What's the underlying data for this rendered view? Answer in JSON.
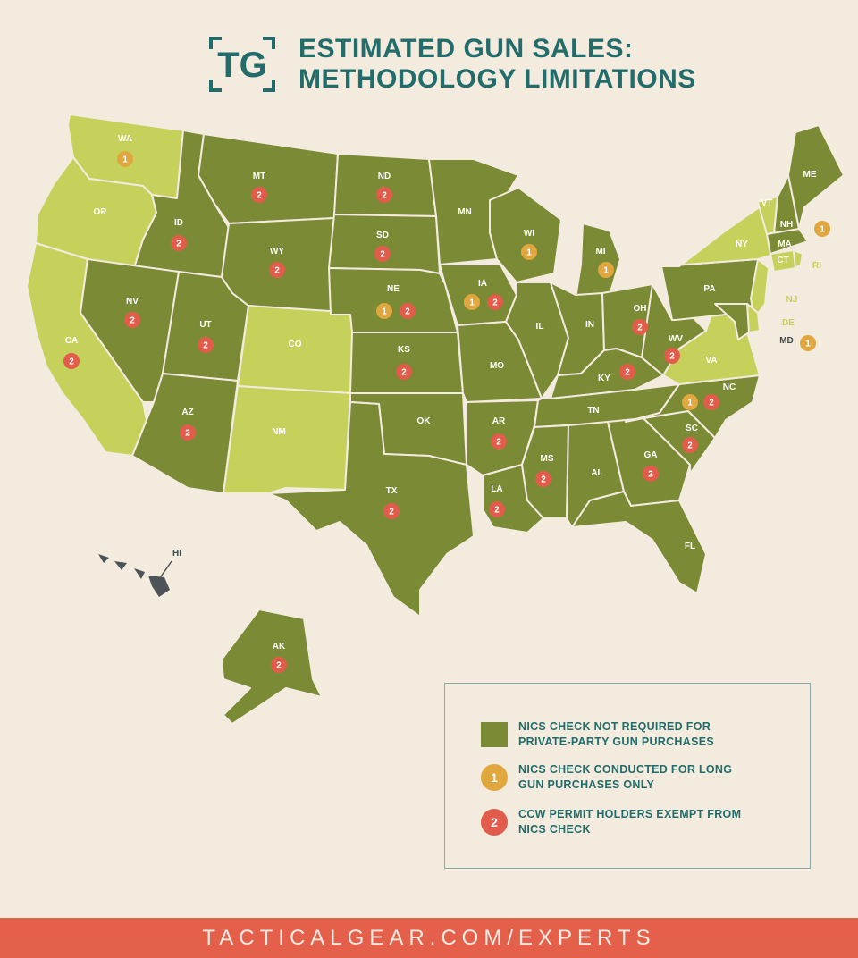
{
  "header": {
    "logo_text": "TG",
    "title_line1": "ESTIMATED GUN SALES:",
    "title_line2": "METHODOLOGY LIMITATIONS"
  },
  "colors": {
    "background": "#f3ebde",
    "dark_green": "#7b8a35",
    "light_green": "#c6d15b",
    "hawaii": "#4d5458",
    "badge_1": "#e0a73f",
    "badge_2": "#e15c4a",
    "teal": "#226d6b",
    "footer": "#e5604b"
  },
  "map": {
    "states": [
      {
        "abbr": "WA",
        "category": "long-gun-only",
        "badges": [
          "1"
        ]
      },
      {
        "abbr": "OR",
        "category": "nics-required",
        "badges": []
      },
      {
        "abbr": "CA",
        "category": "nics-required",
        "badges": [
          "2"
        ]
      },
      {
        "abbr": "ID",
        "category": "no-nics",
        "badges": [
          "2"
        ]
      },
      {
        "abbr": "MT",
        "category": "no-nics",
        "badges": [
          "2"
        ]
      },
      {
        "abbr": "NV",
        "category": "no-nics",
        "badges": [
          "2"
        ]
      },
      {
        "abbr": "UT",
        "category": "no-nics",
        "badges": [
          "2"
        ]
      },
      {
        "abbr": "WY",
        "category": "no-nics",
        "badges": [
          "2"
        ]
      },
      {
        "abbr": "AZ",
        "category": "no-nics",
        "badges": [
          "2"
        ]
      },
      {
        "abbr": "CO",
        "category": "nics-required",
        "badges": []
      },
      {
        "abbr": "NM",
        "category": "nics-required",
        "badges": []
      },
      {
        "abbr": "ND",
        "category": "no-nics",
        "badges": [
          "2"
        ]
      },
      {
        "abbr": "SD",
        "category": "no-nics",
        "badges": [
          "2"
        ]
      },
      {
        "abbr": "NE",
        "category": "no-nics",
        "badges": [
          "1",
          "2"
        ]
      },
      {
        "abbr": "KS",
        "category": "no-nics",
        "badges": [
          "2"
        ]
      },
      {
        "abbr": "OK",
        "category": "no-nics",
        "badges": []
      },
      {
        "abbr": "TX",
        "category": "no-nics",
        "badges": [
          "2"
        ]
      },
      {
        "abbr": "MN",
        "category": "no-nics",
        "badges": []
      },
      {
        "abbr": "IA",
        "category": "no-nics",
        "badges": [
          "1",
          "2"
        ]
      },
      {
        "abbr": "MO",
        "category": "no-nics",
        "badges": []
      },
      {
        "abbr": "AR",
        "category": "no-nics",
        "badges": [
          "2"
        ]
      },
      {
        "abbr": "LA",
        "category": "no-nics",
        "badges": [
          "2"
        ]
      },
      {
        "abbr": "WI",
        "category": "no-nics",
        "badges": [
          "1"
        ]
      },
      {
        "abbr": "IL",
        "category": "no-nics",
        "badges": []
      },
      {
        "abbr": "MI",
        "category": "no-nics",
        "badges": [
          "1"
        ]
      },
      {
        "abbr": "IN",
        "category": "no-nics",
        "badges": []
      },
      {
        "abbr": "OH",
        "category": "no-nics",
        "badges": [
          "2"
        ]
      },
      {
        "abbr": "KY",
        "category": "no-nics",
        "badges": [
          "2"
        ]
      },
      {
        "abbr": "TN",
        "category": "no-nics",
        "badges": []
      },
      {
        "abbr": "MS",
        "category": "no-nics",
        "badges": [
          "2"
        ]
      },
      {
        "abbr": "AL",
        "category": "no-nics",
        "badges": []
      },
      {
        "abbr": "GA",
        "category": "no-nics",
        "badges": [
          "2"
        ]
      },
      {
        "abbr": "FL",
        "category": "no-nics",
        "badges": []
      },
      {
        "abbr": "SC",
        "category": "no-nics",
        "badges": [
          "2"
        ]
      },
      {
        "abbr": "NC",
        "category": "no-nics",
        "badges": [
          "1",
          "2"
        ]
      },
      {
        "abbr": "VA",
        "category": "nics-required",
        "badges": []
      },
      {
        "abbr": "WV",
        "category": "no-nics",
        "badges": [
          "2"
        ]
      },
      {
        "abbr": "PA",
        "category": "no-nics",
        "badges": []
      },
      {
        "abbr": "NY",
        "category": "nics-required",
        "badges": []
      },
      {
        "abbr": "VT",
        "category": "nics-required",
        "badges": []
      },
      {
        "abbr": "NH",
        "category": "no-nics",
        "badges": [
          "1"
        ]
      },
      {
        "abbr": "ME",
        "category": "no-nics",
        "badges": []
      },
      {
        "abbr": "MA",
        "category": "no-nics",
        "badges": []
      },
      {
        "abbr": "CT",
        "category": "nics-required",
        "badges": []
      },
      {
        "abbr": "RI",
        "category": "nics-required",
        "badges": []
      },
      {
        "abbr": "NJ",
        "category": "nics-required",
        "badges": []
      },
      {
        "abbr": "DE",
        "category": "nics-required",
        "badges": []
      },
      {
        "abbr": "MD",
        "category": "no-nics",
        "badges": [
          "1"
        ]
      },
      {
        "abbr": "HI",
        "category": "other",
        "badges": []
      },
      {
        "abbr": "AK",
        "category": "no-nics",
        "badges": [
          "2"
        ]
      }
    ]
  },
  "legend": {
    "items": [
      {
        "symbol": "",
        "text_line1": "NICS CHECK NOT REQUIRED FOR",
        "text_line2": "PRIVATE-PARTY GUN PURCHASES"
      },
      {
        "symbol": "1",
        "text_line1": "NICS CHECK CONDUCTED FOR LONG",
        "text_line2": "GUN PURCHASES ONLY"
      },
      {
        "symbol": "2",
        "text_line1": "CCW PERMIT HOLDERS EXEMPT FROM",
        "text_line2": "NICS CHECK"
      }
    ]
  },
  "footer": {
    "text": "TACTICALGEAR.COM/EXPERTS"
  }
}
